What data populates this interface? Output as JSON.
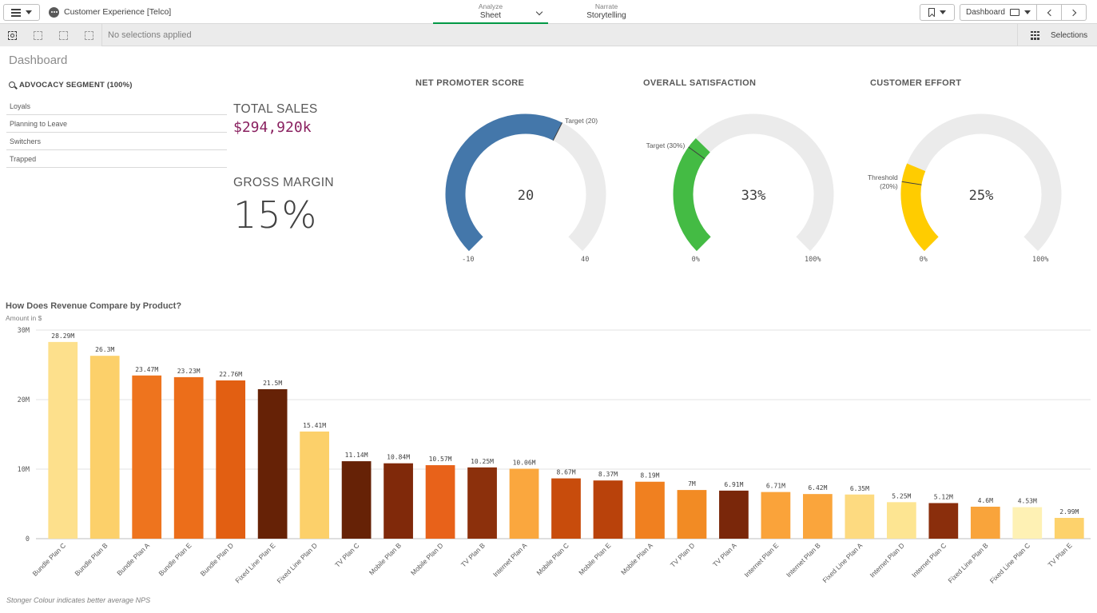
{
  "header": {
    "menu_icon": "hamburger-icon",
    "app_title": "Customer Experience [Telco]",
    "tabs": [
      {
        "small": "Analyze",
        "label": "Sheet"
      },
      {
        "small": "Narrate",
        "label": "Storytelling"
      }
    ],
    "sheet_selector": "Dashboard"
  },
  "selection_bar": {
    "status": "No selections applied",
    "selections_label": "Selections"
  },
  "sheet": {
    "title": "Dashboard",
    "filter": {
      "title": "ADVOCACY SEGMENT (100%)",
      "items": [
        "Loyals",
        "Planning to Leave",
        "Switchers",
        "Trapped"
      ]
    },
    "kpis": [
      {
        "label": "TOTAL SALES",
        "value": "$294,920k"
      },
      {
        "label": "GROSS MARGIN",
        "value": "15%"
      }
    ],
    "gauges": [
      {
        "title": "NET PROMOTER SCORE",
        "value": 20,
        "value_text": "20",
        "min": -10,
        "max": 40,
        "min_label": "-10",
        "max_label": "40",
        "ref_value": 20,
        "ref_label": "Target (20)",
        "color": "#4477aa"
      },
      {
        "title": "OVERALL SATISFACTION",
        "value": 33,
        "value_text": "33%",
        "min": 0,
        "max": 100,
        "min_label": "0%",
        "max_label": "100%",
        "ref_value": 30,
        "ref_label": "Target (30%)",
        "color": "#44bb44"
      },
      {
        "title": "CUSTOMER EFFORT",
        "value": 25,
        "value_text": "25%",
        "min": 0,
        "max": 100,
        "min_label": "0%",
        "max_label": "100%",
        "ref_value": 20,
        "ref_label": "Threshold (20%)",
        "color": "#ffcc00"
      }
    ]
  },
  "chart_data": {
    "type": "bar",
    "title": "How Does Revenue Compare by Product?",
    "subtitle": "Amount in $",
    "footnote": "Stonger Colour indicates better average NPS",
    "ylim": [
      0,
      30
    ],
    "yticks": [
      {
        "v": 0,
        "label": "0"
      },
      {
        "v": 10,
        "label": "10M"
      },
      {
        "v": 20,
        "label": "20M"
      },
      {
        "v": 30,
        "label": "30M"
      }
    ],
    "categories": [
      "Bundle Plan C",
      "Bundle Plan B",
      "Bundle Plan A",
      "Bundle Plan E",
      "Bundle Plan D",
      "Fixed Line Plan E",
      "Fixed Line Plan D",
      "TV Plan C",
      "Mobile Plan B",
      "Mobile Plan D",
      "TV Plan B",
      "Internet Plan A",
      "Mobile Plan C",
      "Mobile Plan E",
      "Mobile Plan A",
      "TV Plan D",
      "TV Plan A",
      "Internet Plan E",
      "Internet Plan B",
      "Fixed Line Plan A",
      "Internet Plan D",
      "Internet Plan C",
      "Fixed Line Plan B",
      "Fixed Line Plan C",
      "TV Plan E"
    ],
    "values": [
      28.29,
      26.3,
      23.47,
      23.23,
      22.76,
      21.5,
      15.41,
      11.14,
      10.84,
      10.57,
      10.25,
      10.06,
      8.67,
      8.37,
      8.19,
      7,
      6.91,
      6.71,
      6.42,
      6.35,
      5.25,
      5.12,
      4.6,
      4.53,
      2.99
    ],
    "labels": [
      "28.29M",
      "26.3M",
      "23.47M",
      "23.23M",
      "22.76M",
      "21.5M",
      "15.41M",
      "11.14M",
      "10.84M",
      "10.57M",
      "10.25M",
      "10.06M",
      "8.67M",
      "8.37M",
      "8.19M",
      "7M",
      "6.91M",
      "6.71M",
      "6.42M",
      "6.35M",
      "5.25M",
      "5.12M",
      "4.6M",
      "4.53M",
      "2.99M"
    ],
    "colors": [
      "#fde08c",
      "#fcd06a",
      "#ee741e",
      "#ec6e1a",
      "#e25f12",
      "#662206",
      "#fcd06a",
      "#662206",
      "#80290a",
      "#e8621a",
      "#8c300c",
      "#faa73e",
      "#c84c0c",
      "#b9420b",
      "#f08020",
      "#f28b24",
      "#7a270a",
      "#faa33a",
      "#faa53c",
      "#fdda80",
      "#fde592",
      "#8a2e0c",
      "#f9a43b",
      "#fef1b4",
      "#fdd26c"
    ]
  }
}
